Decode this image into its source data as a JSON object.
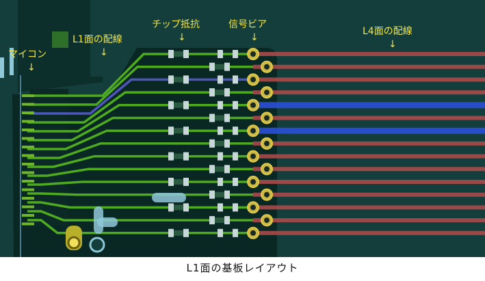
{
  "annotations": {
    "mcu": "マイコン",
    "l1_wiring": "L1面の配線",
    "chip_resistor": "チップ抵抗",
    "signal_via": "信号ビア",
    "l4_wiring": "L4面の配線",
    "arrow_glyph": "↓"
  },
  "caption": "L1面の基板レイアウト",
  "colors": {
    "board_bg": "#123d3a",
    "copper_pour": "#08231f",
    "l1_trace": "#5bc21e",
    "l1_highlight_trace": "#5a5fd8",
    "l4_trace": "#a84a4a",
    "l4_highlight_trace": "#2b4fd8",
    "pad": "#c8d8d8",
    "via_ring": "#e0c848",
    "label": "#f2e64a",
    "mcu_pin": "#6fb62a"
  }
}
